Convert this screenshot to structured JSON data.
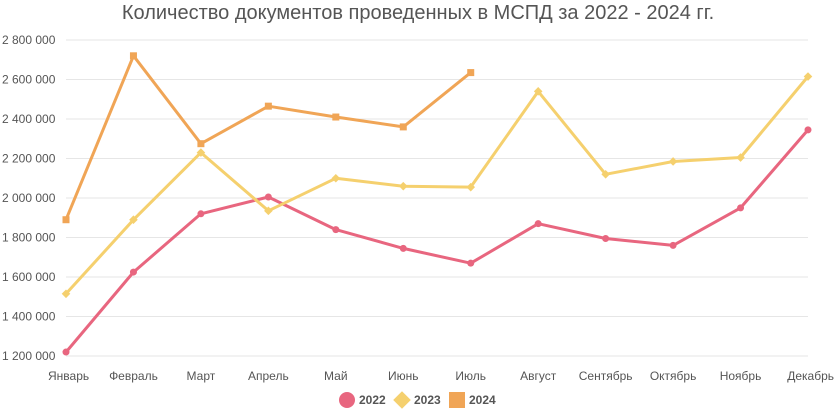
{
  "chart_data": {
    "type": "line",
    "title": "Количество документов проведенных в МСПД за 2022 - 2024 гг.",
    "categories": [
      "Январь",
      "Февраль",
      "Март",
      "Апрель",
      "Май",
      "Июнь",
      "Июль",
      "Август",
      "Сентябрь",
      "Октябрь",
      "Ноябрь",
      "Декабрь"
    ],
    "y_tick_labels": [
      "1 200 000",
      "1 400 000",
      "1 600 000",
      "1 800 000",
      "2 000 000",
      "2 200 000",
      "2 400 000",
      "2 600 000",
      "2 800 000"
    ],
    "y_ticks": [
      1200000,
      1400000,
      1600000,
      1800000,
      2000000,
      2200000,
      2400000,
      2600000,
      2800000
    ],
    "ylim": [
      1200000,
      2800000
    ],
    "grid": true,
    "legend_position": "bottom",
    "series": [
      {
        "name": "2022",
        "marker": "circle",
        "color": "#e8667f",
        "values": [
          1220000,
          1625000,
          1920000,
          2005000,
          1840000,
          1745000,
          1670000,
          1870000,
          1795000,
          1760000,
          1950000,
          2345000
        ]
      },
      {
        "name": "2023",
        "marker": "diamond",
        "color": "#f5d06e",
        "values": [
          1515000,
          1890000,
          2230000,
          1935000,
          2100000,
          2060000,
          2055000,
          2540000,
          2120000,
          2185000,
          2205000,
          2615000
        ]
      },
      {
        "name": "2024",
        "marker": "square",
        "color": "#f0a556",
        "values": [
          1890000,
          2720000,
          2275000,
          2465000,
          2410000,
          2360000,
          2635000,
          null,
          null,
          null,
          null,
          null
        ]
      }
    ]
  }
}
